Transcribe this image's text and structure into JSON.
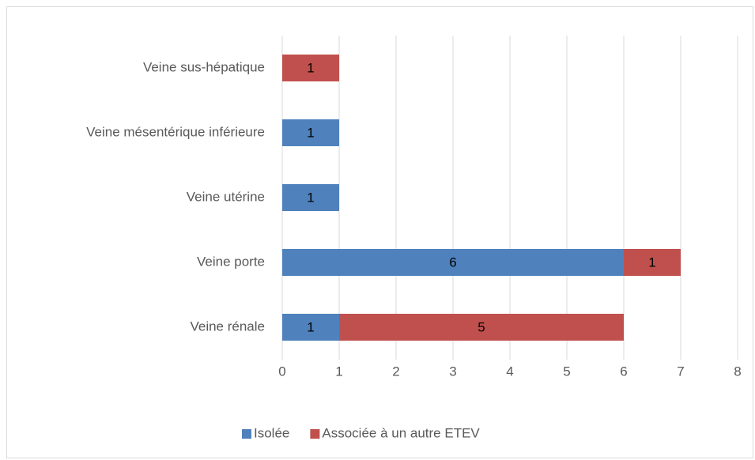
{
  "chart_data": {
    "type": "stacked-barh",
    "categories": [
      "Veine sus-hépatique",
      "Veine mésentérique inférieure",
      "Veine utérine",
      "Veine porte",
      "Veine rénale"
    ],
    "series": [
      {
        "name": "Isolée",
        "color": "#4f81bd",
        "values": [
          null,
          1,
          1,
          6,
          1
        ]
      },
      {
        "name": "Associée à un autre ETEV",
        "color": "#c0504d",
        "values": [
          1,
          null,
          null,
          1,
          5
        ]
      }
    ],
    "xlim": [
      0,
      8
    ],
    "xticks": [
      0,
      1,
      2,
      3,
      4,
      5,
      6,
      7,
      8
    ],
    "grid": true,
    "legend": "bottom"
  }
}
